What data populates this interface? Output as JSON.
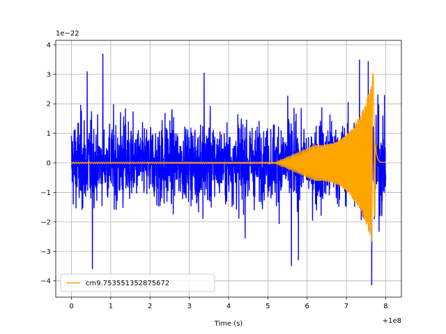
{
  "chart_data": {
    "type": "line",
    "xlabel": "Time (s)",
    "x_offset_label": "+1e8",
    "y_scale_label": "1e−22",
    "xlim": [
      -0.4,
      8.4
    ],
    "ylim": [
      -4.55,
      4.15
    ],
    "x_ticks": [
      0,
      1,
      2,
      3,
      4,
      5,
      6,
      7,
      8
    ],
    "x_tick_labels": [
      "0",
      "1",
      "2",
      "3",
      "4",
      "5",
      "6",
      "7",
      "8"
    ],
    "y_ticks": [
      -4,
      -3,
      -2,
      -1,
      0,
      1,
      2,
      3,
      4
    ],
    "y_tick_labels": [
      "−4",
      "−3",
      "−2",
      "−1",
      "0",
      "1",
      "2",
      "3",
      "4"
    ],
    "grid": true,
    "legend_position": "lower-left",
    "series": [
      {
        "color": "#0000ff",
        "x_range": [
          0,
          8.0
        ],
        "approx_envelope": {
          "max": 3.7,
          "min": -4.15
        }
      },
      {
        "name": "cm9.753551352875672",
        "color": "#ffa500",
        "x_range": [
          0,
          8.0
        ],
        "approx_envelope": {
          "max": 3.0,
          "min": -1.8
        }
      }
    ]
  }
}
